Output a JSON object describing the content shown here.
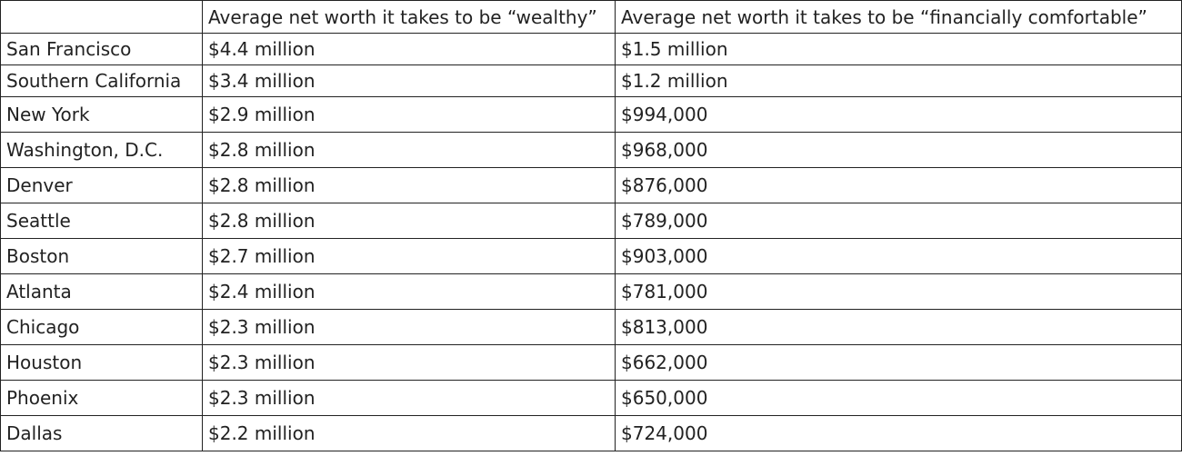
{
  "table": {
    "columns": [
      "Average net worth it takes to be “wealthy”",
      "Average net worth it takes to be “financially comfortable”"
    ],
    "rows": [
      [
        "San Francisco",
        "$4.4 million",
        "$1.5 million"
      ],
      [
        "Southern California",
        "$3.4 million",
        "$1.2 million"
      ],
      [
        "New York",
        "$2.9 million",
        "$994,000"
      ],
      [
        "Washington, D.C.",
        "$2.8 million",
        "$968,000"
      ],
      [
        "Denver",
        "$2.8 million",
        "$876,000"
      ],
      [
        "Seattle",
        "$2.8 million",
        "$789,000"
      ],
      [
        "Boston",
        "$2.7 million",
        "$903,000"
      ],
      [
        "Atlanta",
        "$2.4 million",
        "$781,000"
      ],
      [
        "Chicago",
        "$2.3 million",
        "$813,000"
      ],
      [
        "Houston",
        "$2.3 million",
        "$662,000"
      ],
      [
        "Phoenix",
        "$2.3 million",
        "$650,000"
      ],
      [
        "Dallas",
        "$2.2 million",
        "$724,000"
      ]
    ]
  }
}
